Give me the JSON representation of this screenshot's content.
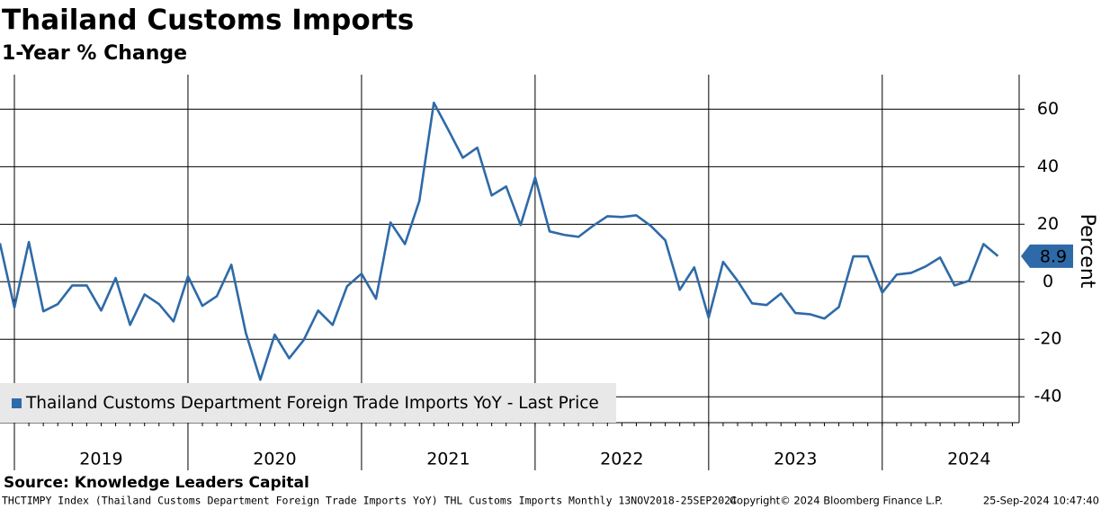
{
  "chart_data": {
    "type": "line",
    "title": "Thailand Customs Imports",
    "subtitle": "1-Year % Change",
    "y_label": "Percent",
    "source": "Source: Knowledge Leaders Capital",
    "footer_left": "THCTIMPY Index (Thailand Customs Department Foreign Trade Imports YoY) THL Customs Imports  Monthly 13NOV2018-25SEP2024",
    "footer_mid": "Copyright© 2024 Bloomberg Finance L.P.",
    "footer_right": "25-Sep-2024 10:47:40",
    "year_labels": [
      "2019",
      "2020",
      "2021",
      "2022",
      "2023",
      "2024"
    ],
    "ylim": [
      -49,
      72
    ],
    "yticks": [
      -40,
      -20,
      0,
      20,
      40,
      60
    ],
    "grid": true,
    "legend": "bottom-left",
    "series": [
      {
        "name": "Thailand Customs Department Foreign Trade Imports YoY - Last Price",
        "color": "#2e6aa8",
        "values": [
          13.4,
          -9,
          13.8,
          -10.3,
          -7.8,
          -1.3,
          -1.3,
          -10,
          1.3,
          -15,
          -4.4,
          -7.8,
          -13.8,
          1.9,
          -8.4,
          -5,
          5.9,
          -17.8,
          -34.1,
          -18.4,
          -26.6,
          -20.3,
          -10,
          -15,
          -1.6,
          2.8,
          -5.9,
          20.6,
          13.1,
          28.1,
          62.2,
          52.8,
          43.1,
          46.6,
          30,
          33.1,
          19.7,
          36.3,
          17.5,
          16.3,
          15.6,
          19.4,
          22.8,
          22.5,
          23.1,
          19.4,
          14.4,
          -2.8,
          5,
          -12.5,
          6.9,
          0.3,
          -7.5,
          -8.1,
          -4.1,
          -10.9,
          -11.3,
          -12.8,
          -8.8,
          8.8,
          8.8,
          -3.8,
          2.5,
          3.1,
          5.3,
          8.4,
          -1.3,
          0.3,
          13.1,
          8.9
        ]
      }
    ]
  }
}
